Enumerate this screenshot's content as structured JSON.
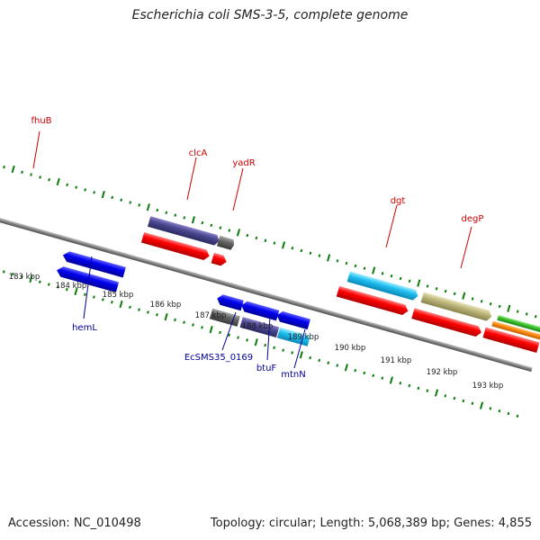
{
  "header": {
    "title": "Escherichia coli SMS-3-5, complete genome"
  },
  "footer": {
    "accession": "Accession: NC_010498",
    "topology": "Topology: circular; Length: 5,068,389 bp; Genes: 4,855"
  },
  "colors": {
    "forward_gene": "#ff0000",
    "reverse_gene": "#0000ee",
    "label_top": "#cc0000",
    "label_bottom": "#000099",
    "tick": "#0a7a0a",
    "backbone": "#808080"
  },
  "scale_labels": [
    "183 kbp",
    "184 kbp",
    "185 kbp",
    "186 kbp",
    "187 kbp",
    "188 kbp",
    "189 kbp",
    "190 kbp",
    "191 kbp",
    "192 kbp",
    "193 kbp"
  ],
  "gene_labels": {
    "fhuB": "fhuB",
    "clcA": "clcA",
    "yadR": "yadR",
    "dgt": "dgt",
    "degP": "degP",
    "hemL": "hemL",
    "EcSMS35_0169": "EcSMS35_0169",
    "btuF": "btuF",
    "mtnN": "mtnN"
  }
}
